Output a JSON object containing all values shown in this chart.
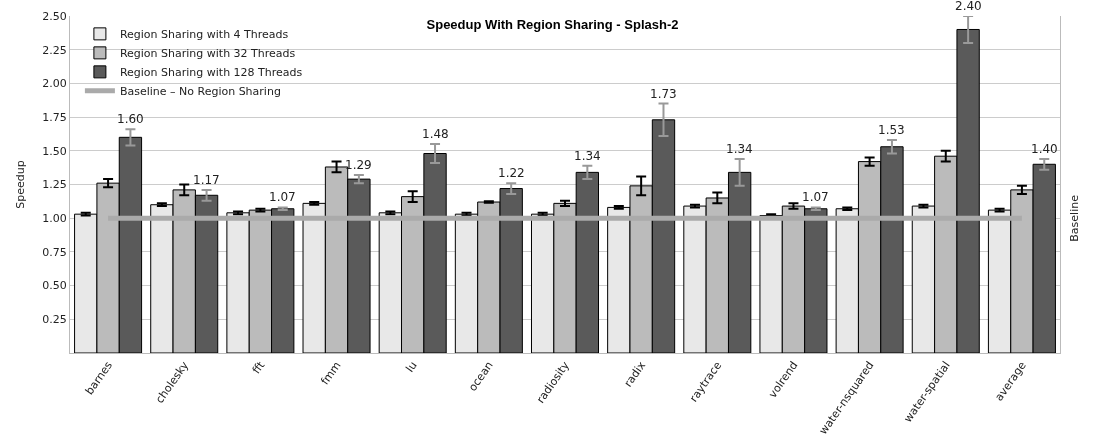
{
  "chart_data": {
    "type": "bar",
    "title": "Speedup With Region Sharing - Splash-2",
    "ylabel": "Speedup",
    "categories": [
      "barnes",
      "cholesky",
      "fft",
      "fmm",
      "lu",
      "ocean",
      "radiosity",
      "radix",
      "raytrace",
      "volrend",
      "water-nsquared",
      "water-spatial",
      "average"
    ],
    "series": [
      {
        "name": "Region Sharing with 4 Threads",
        "color": "#e8e8e8",
        "values": [
          1.03,
          1.1,
          1.04,
          1.11,
          1.04,
          1.03,
          1.03,
          1.08,
          1.09,
          1.02,
          1.07,
          1.09,
          1.06
        ],
        "errors": [
          0.01,
          0.01,
          0.01,
          0.01,
          0.01,
          0.01,
          0.01,
          0.01,
          0.01,
          0.01,
          0.01,
          0.01,
          0.01
        ]
      },
      {
        "name": "Region Sharing with 32 Threads",
        "color": "#bbbbbb",
        "values": [
          1.26,
          1.21,
          1.06,
          1.38,
          1.16,
          1.12,
          1.11,
          1.24,
          1.15,
          1.09,
          1.42,
          1.46,
          1.21
        ],
        "errors": [
          0.03,
          0.04,
          0.01,
          0.04,
          0.04,
          0.005,
          0.02,
          0.07,
          0.04,
          0.02,
          0.03,
          0.04,
          0.03
        ]
      },
      {
        "name": "Region Sharing with 128 Threads",
        "color": "#5a5a5a",
        "values": [
          1.6,
          1.17,
          1.07,
          1.29,
          1.48,
          1.22,
          1.34,
          1.73,
          1.34,
          1.07,
          1.53,
          2.4,
          1.4
        ],
        "errors": [
          0.06,
          0.04,
          0.01,
          0.03,
          0.07,
          0.04,
          0.05,
          0.12,
          0.1,
          0.01,
          0.05,
          0.1,
          0.04
        ],
        "value_labels": [
          "1.60",
          "1.17",
          "1.07",
          "1.29",
          "1.48",
          "1.22",
          "1.34",
          "1.73",
          "1.34",
          "1.07",
          "1.53",
          "2.40",
          "1.40"
        ]
      },
      {
        "name": "Baseline – No Region Sharing",
        "type": "line",
        "color": "#aaaaaa",
        "values": [
          1,
          1,
          1,
          1,
          1,
          1,
          1,
          1,
          1,
          1,
          1,
          1,
          1
        ]
      }
    ],
    "annotations": [
      "Baseline"
    ],
    "ylim": [
      0,
      2.5
    ],
    "yticks": [
      {
        "value": 0.25,
        "label": "0.25"
      },
      {
        "value": 0.5,
        "label": "0.50"
      },
      {
        "value": 0.75,
        "label": "0.75"
      },
      {
        "value": 1,
        "label": "1.00"
      },
      {
        "value": 1.25,
        "label": "1.25"
      },
      {
        "value": 1.5,
        "label": "1.50"
      },
      {
        "value": 1.75,
        "label": "1.75"
      },
      {
        "value": 2,
        "label": "2.00"
      },
      {
        "value": 2.25,
        "label": "2.25"
      },
      {
        "value": 2.5,
        "label": "2.50"
      }
    ],
    "grid": "y",
    "legend": "top left",
    "marker": "none",
    "line_style": "solid"
  }
}
